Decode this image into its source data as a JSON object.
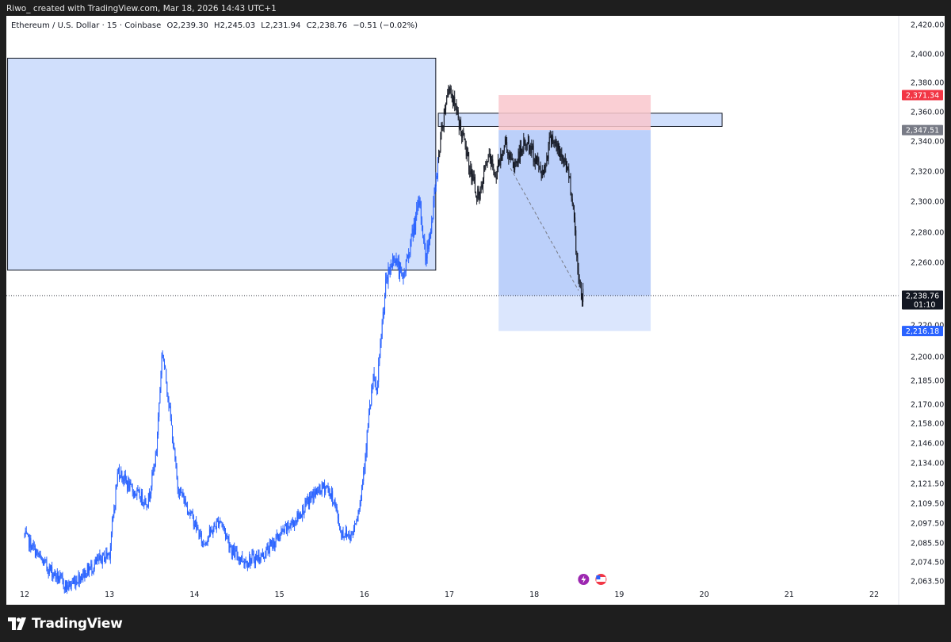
{
  "header": {
    "author": "Riwo_",
    "credit": "created with TradingView.com, Mar 18, 2026 14:43 UTC+1"
  },
  "legend": {
    "symbol": "Ethereum / U.S. Dollar · 15 · Coinbase",
    "open_label": "O",
    "open": "2,239.30",
    "high_label": "H",
    "high": "2,245.03",
    "low_label": "L",
    "low": "2,231.94",
    "close_label": "C",
    "close": "2,238.76",
    "change": "−0.51 (−0.02%)"
  },
  "colors": {
    "candle": "#2962ff",
    "candle_recent": "#131722",
    "zone_fill": "#d0dffc",
    "stop_fill": "#f9c7cc",
    "target_fill": "#b8cefa",
    "target_pale": "#dbe6fd",
    "red_badge": "#f23645",
    "gray_badge": "#787b86",
    "blue_badge": "#2962ff"
  },
  "chart_data": {
    "type": "candlestick",
    "title": "",
    "symbol": "Ethereum / U.S. Dollar",
    "interval": "15",
    "exchange": "Coinbase",
    "x_ticks": [
      "12",
      "13",
      "14",
      "15",
      "16",
      "17",
      "18",
      "19",
      "20",
      "21",
      "22"
    ],
    "y_ticks": [
      "2,420.00",
      "2,400.00",
      "2,380.00",
      "2,360.00",
      "2,340.00",
      "2,320.00",
      "2,300.00",
      "2,280.00",
      "2,260.00",
      "2,220.00",
      "2,200.00",
      "2,185.00",
      "2,170.00",
      "2,158.00",
      "2,146.00",
      "2,134.00",
      "2,121.50",
      "2,109.50",
      "2,097.50",
      "2,085.50",
      "2,074.50",
      "2,063.50"
    ],
    "y_scale": "nonlinear",
    "price_path": [
      [
        "12.00",
        2090
      ],
      [
        "12.20",
        2075
      ],
      [
        "12.50",
        2060
      ],
      [
        "12.80",
        2072
      ],
      [
        "13.00",
        2080
      ],
      [
        "13.10",
        2130
      ],
      [
        "13.25",
        2118
      ],
      [
        "13.45",
        2110
      ],
      [
        "13.55",
        2140
      ],
      [
        "13.62",
        2205
      ],
      [
        "13.70",
        2170
      ],
      [
        "13.80",
        2120
      ],
      [
        "14.00",
        2098
      ],
      [
        "14.10",
        2085
      ],
      [
        "14.30",
        2100
      ],
      [
        "14.45",
        2080
      ],
      [
        "14.60",
        2075
      ],
      [
        "14.80",
        2078
      ],
      [
        "15.00",
        2090
      ],
      [
        "15.20",
        2100
      ],
      [
        "15.40",
        2115
      ],
      [
        "15.55",
        2120
      ],
      [
        "15.65",
        2110
      ],
      [
        "15.72",
        2092
      ],
      [
        "15.85",
        2090
      ],
      [
        "15.95",
        2110
      ],
      [
        "16.00",
        2135
      ],
      [
        "16.05",
        2160
      ],
      [
        "16.10",
        2185
      ],
      [
        "16.15",
        2178
      ],
      [
        "16.20",
        2215
      ],
      [
        "16.25",
        2245
      ],
      [
        "16.35",
        2265
      ],
      [
        "16.45",
        2248
      ],
      [
        "16.55",
        2275
      ],
      [
        "16.65",
        2300
      ],
      [
        "16.72",
        2262
      ],
      [
        "16.80",
        2290
      ],
      [
        "16.88",
        2335
      ],
      [
        "16.95",
        2365
      ],
      [
        "17.00",
        2378
      ],
      [
        "17.08",
        2360
      ],
      [
        "17.15",
        2345
      ],
      [
        "17.25",
        2320
      ],
      [
        "17.35",
        2300
      ],
      [
        "17.45",
        2330
      ],
      [
        "17.55",
        2318
      ],
      [
        "17.65",
        2340
      ],
      [
        "17.75",
        2322
      ],
      [
        "17.90",
        2340
      ],
      [
        "18.00",
        2330
      ],
      [
        "18.10",
        2318
      ],
      [
        "18.20",
        2345
      ],
      [
        "18.30",
        2330
      ],
      [
        "18.38",
        2325
      ],
      [
        "18.45",
        2302
      ],
      [
        "18.50",
        2262
      ],
      [
        "18.55",
        2240
      ],
      [
        "18.58",
        2238.76
      ]
    ],
    "last_price": "2,238.76",
    "countdown": "01:10",
    "zones": [
      {
        "name": "supply-zone",
        "x_start": "11.8",
        "x_end": "16.84",
        "y_low": 2255,
        "y_high": 2397
      },
      {
        "name": "resistance-band",
        "x_start": "16.87",
        "x_end": "20.21",
        "y_low": 2350,
        "y_high": 2359
      }
    ],
    "short_position": {
      "entry": "2,347.51",
      "stop": "2,371.34",
      "target": "2,216.18",
      "x_start": "17.58",
      "x_end": "19.37"
    }
  },
  "branding": {
    "logo_text": "TradingView"
  }
}
